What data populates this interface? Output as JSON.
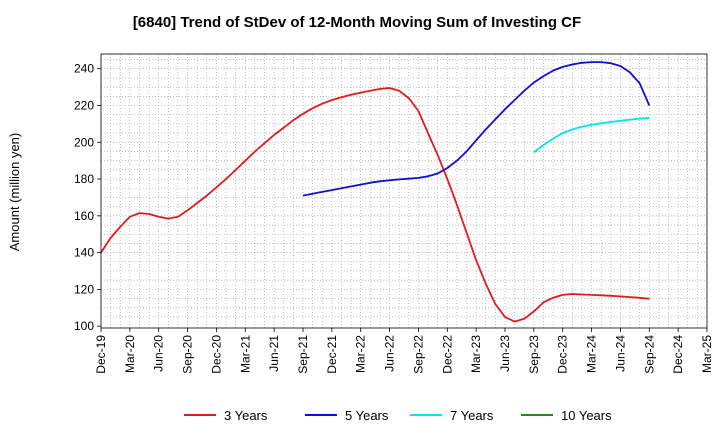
{
  "chart_data": {
    "type": "line",
    "title": "[6840]  Trend of StDev of 12-Month Moving Sum of Investing CF",
    "ylabel": "Amount (million yen)",
    "xlabel": "",
    "ylim": [
      99,
      248
    ],
    "yticks": [
      100,
      120,
      140,
      160,
      180,
      200,
      220,
      240
    ],
    "x_ticks": [
      "Dec-19",
      "Mar-20",
      "Jun-20",
      "Sep-20",
      "Dec-20",
      "Mar-21",
      "Jun-21",
      "Sep-21",
      "Dec-21",
      "Mar-22",
      "Jun-22",
      "Sep-22",
      "Dec-22",
      "Mar-23",
      "Jun-23",
      "Sep-23",
      "Dec-23",
      "Mar-24",
      "Jun-24",
      "Sep-24",
      "Dec-24",
      "Mar-25"
    ],
    "x_range": [
      "Dec-19",
      "Mar-25"
    ],
    "grid": true,
    "legend_position": "bottom",
    "series": [
      {
        "name": "3 Years",
        "color": "#e31a1c",
        "x": [
          "Dec-19",
          "Jan-20",
          "Feb-20",
          "Mar-20",
          "Apr-20",
          "May-20",
          "Jun-20",
          "Jul-20",
          "Aug-20",
          "Sep-20",
          "Oct-20",
          "Nov-20",
          "Dec-20",
          "Jan-21",
          "Feb-21",
          "Mar-21",
          "Apr-21",
          "May-21",
          "Jun-21",
          "Jul-21",
          "Aug-21",
          "Sep-21",
          "Oct-21",
          "Nov-21",
          "Dec-21",
          "Jan-22",
          "Feb-22",
          "Mar-22",
          "Apr-22",
          "May-22",
          "Jun-22",
          "Jul-22",
          "Aug-22",
          "Sep-22",
          "Oct-22",
          "Nov-22",
          "Dec-22",
          "Jan-23",
          "Feb-23",
          "Mar-23",
          "Apr-23",
          "May-23",
          "Jun-23",
          "Jul-23",
          "Aug-23",
          "Sep-23",
          "Oct-23",
          "Nov-23",
          "Dec-23",
          "Jan-24",
          "Feb-24",
          "Mar-24",
          "Apr-24",
          "May-24",
          "Jun-24",
          "Jul-24",
          "Aug-24",
          "Sep-24"
        ],
        "values": [
          140,
          148,
          154,
          159.5,
          161.5,
          161,
          159.5,
          158.5,
          159.5,
          163,
          167,
          171,
          175.5,
          180,
          185,
          190,
          195,
          199.5,
          204,
          208,
          212,
          215.5,
          218.5,
          221,
          223,
          224.5,
          225.8,
          227,
          228,
          229,
          229.5,
          228,
          224,
          217,
          205,
          193,
          180,
          166,
          151,
          136,
          123,
          112,
          105,
          102.5,
          104,
          108,
          113,
          115.5,
          117,
          117.5,
          117.2,
          117,
          116.8,
          116.5,
          116.2,
          115.8,
          115.4,
          114.9
        ]
      },
      {
        "name": "5 Years",
        "color": "#1010cc",
        "x": [
          "Sep-21",
          "Oct-21",
          "Nov-21",
          "Dec-21",
          "Jan-22",
          "Feb-22",
          "Mar-22",
          "Apr-22",
          "May-22",
          "Jun-22",
          "Jul-22",
          "Aug-22",
          "Sep-22",
          "Oct-22",
          "Nov-22",
          "Dec-22",
          "Jan-23",
          "Feb-23",
          "Mar-23",
          "Apr-23",
          "May-23",
          "Jun-23",
          "Jul-23",
          "Aug-23",
          "Sep-23",
          "Oct-23",
          "Nov-23",
          "Dec-23",
          "Jan-24",
          "Feb-24",
          "Mar-24",
          "Apr-24",
          "May-24",
          "Jun-24",
          "Jul-24",
          "Aug-24",
          "Sep-24"
        ],
        "values": [
          171,
          172,
          173,
          174,
          175,
          176,
          177,
          178,
          178.8,
          179.3,
          179.8,
          180.2,
          180.6,
          181.5,
          183,
          186,
          190,
          195,
          201,
          207,
          212.5,
          218,
          223,
          228,
          232.5,
          236,
          239,
          241,
          242.3,
          243.2,
          243.6,
          243.6,
          243,
          241.5,
          238,
          232,
          220
        ]
      },
      {
        "name": "7 Years",
        "color": "#00e5ee",
        "x": [
          "Sep-23",
          "Oct-23",
          "Nov-23",
          "Dec-23",
          "Jan-24",
          "Feb-24",
          "Mar-24",
          "Apr-24",
          "May-24",
          "Jun-24",
          "Jul-24",
          "Aug-24",
          "Sep-24"
        ],
        "values": [
          194.5,
          198.5,
          202,
          205,
          207,
          208.5,
          209.5,
          210.3,
          211,
          211.7,
          212.3,
          212.8,
          213.3
        ]
      },
      {
        "name": "10 Years",
        "color": "#228b22",
        "x": [],
        "values": []
      }
    ]
  }
}
